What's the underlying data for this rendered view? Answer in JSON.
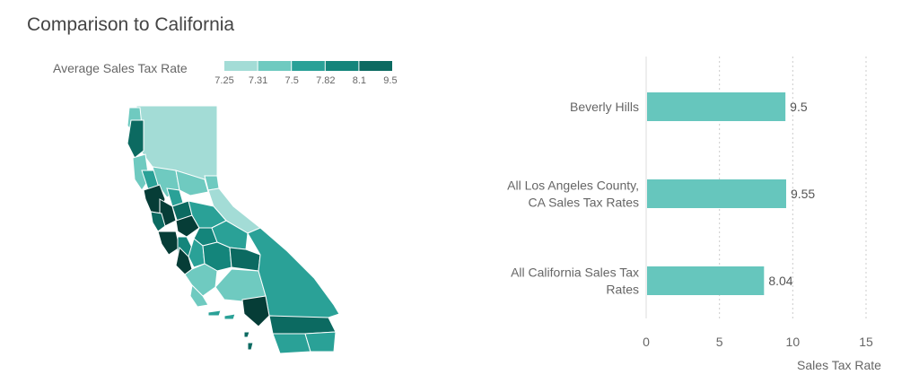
{
  "page": {
    "title": "Comparison to California"
  },
  "colors": {
    "bar": "#66c6bd",
    "gridline": "#cccccc",
    "axis": "#dddddd",
    "scale": [
      "#a3dcd6",
      "#6fcac0",
      "#2aa197",
      "#14857b",
      "#0c6a61",
      "#063d37"
    ]
  },
  "map_legend": {
    "title": "Average Sales Tax Rate",
    "ticks": [
      "7.25",
      "7.31",
      "7.5",
      "7.82",
      "8.1",
      "9.55"
    ]
  },
  "chart_data": [
    {
      "type": "choropleth",
      "title": "",
      "region": "California counties",
      "legend_title": "Average Sales Tax Rate",
      "scale_breaks": [
        7.25,
        7.31,
        7.5,
        7.82,
        8.1,
        9.55
      ]
    },
    {
      "type": "bar",
      "orientation": "horizontal",
      "title": "",
      "categories": [
        [
          "Beverly Hills"
        ],
        [
          "All Los Angeles County,",
          "CA Sales Tax Rates"
        ],
        [
          "All California Sales Tax",
          "Rates"
        ]
      ],
      "values": [
        9.5,
        9.55,
        8.04
      ],
      "value_labels": [
        "9.5",
        "9.55",
        "8.04"
      ],
      "xlabel": "Sales Tax Rate",
      "ylabel": "",
      "xlim": [
        0,
        15
      ],
      "xticks": [
        0,
        5,
        10,
        15
      ],
      "grid": true
    }
  ]
}
